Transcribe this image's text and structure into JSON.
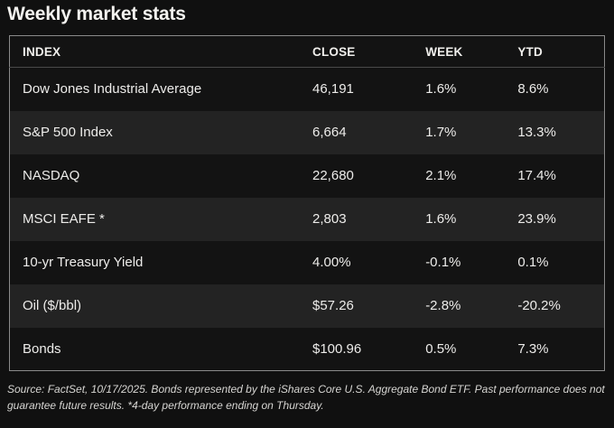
{
  "title": "Weekly market stats",
  "chart_data": {
    "type": "table",
    "title": "Weekly market stats",
    "columns": [
      "INDEX",
      "CLOSE",
      "WEEK",
      "YTD"
    ],
    "rows": [
      [
        "Dow Jones Industrial Average",
        "46,191",
        "1.6%",
        "8.6%"
      ],
      [
        "S&P 500 Index",
        "6,664",
        "1.7%",
        "13.3%"
      ],
      [
        "NASDAQ",
        "22,680",
        "2.1%",
        "17.4%"
      ],
      [
        "MSCI EAFE *",
        "2,803",
        "1.6%",
        "23.9%"
      ],
      [
        "10-yr Treasury Yield",
        "4.00%",
        "-0.1%",
        "0.1%"
      ],
      [
        "Oil ($/bbl)",
        "$57.26",
        "-2.8%",
        "-20.2%"
      ],
      [
        "Bonds",
        "$100.96",
        "0.5%",
        "7.3%"
      ]
    ],
    "footnote": "Source: FactSet, 10/17/2025. Bonds represented by the iShares Core U.S. Aggregate Bond ETF. Past performance does not guarantee future results. *4-day performance ending on Thursday."
  },
  "footer": {
    "line1": "Source: FactSet, 10/17/2025. Bonds represented by the iShares Core U.S. Aggregate Bond ETF. Past performance does not",
    "line2": "guarantee future results. *4-day performance ending on Thursday."
  },
  "colors": {
    "page_bg": "#101010",
    "row_dark": "#131313",
    "row_light": "#232323",
    "table_border": "#8a8a8a",
    "header_rule": "#4a4a4a",
    "text_primary": "#edecea",
    "footer_text": "#d6d5d2"
  }
}
